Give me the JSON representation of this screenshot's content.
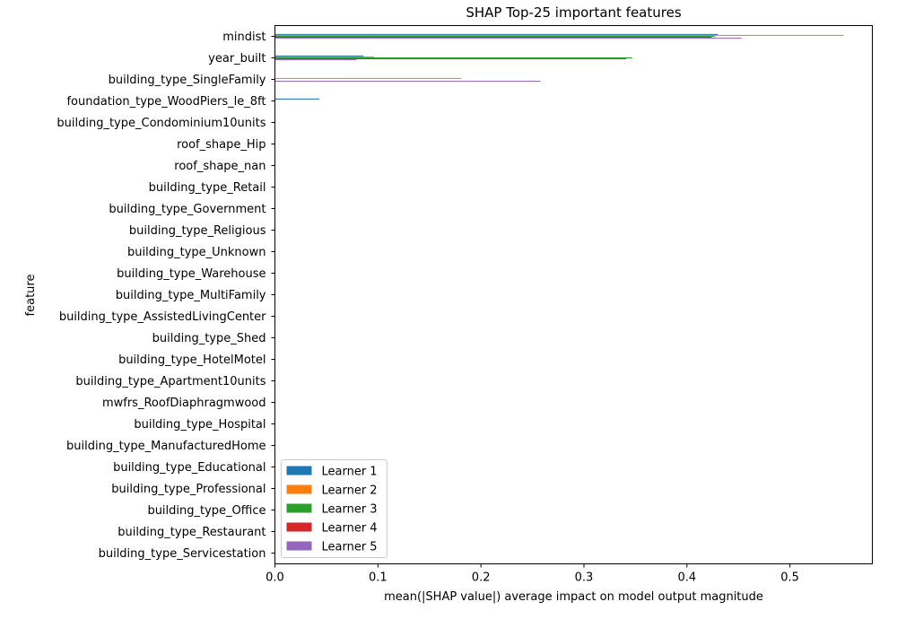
{
  "chart_data": {
    "type": "bar",
    "orientation": "horizontal",
    "title": "SHAP Top-25 important features",
    "xlabel": "mean(|SHAP value|) average impact on model output magnitude",
    "ylabel": "feature",
    "xlim": [
      0,
      0.58
    ],
    "xticks": [
      0.0,
      0.1,
      0.2,
      0.3,
      0.4,
      0.5
    ],
    "xtick_labels": [
      "0.0",
      "0.1",
      "0.2",
      "0.3",
      "0.4",
      "0.5"
    ],
    "grid": false,
    "legend_position": "lower-left",
    "categories": [
      "mindist",
      "year_built",
      "building_type_SingleFamily",
      "foundation_type_WoodPiers_le_8ft",
      "building_type_Condominium10units",
      "roof_shape_Hip",
      "roof_shape_nan",
      "building_type_Retail",
      "building_type_Government",
      "building_type_Religious",
      "building_type_Unknown",
      "building_type_Warehouse",
      "building_type_MultiFamily",
      "building_type_AssistedLivingCenter",
      "building_type_Shed",
      "building_type_HotelMotel",
      "building_type_Apartment10units",
      "mwfrs_RoofDiaphragmwood",
      "building_type_Hospital",
      "building_type_ManufacturedHome",
      "building_type_Educational",
      "building_type_Professional",
      "building_type_Office",
      "building_type_Restaurant",
      "building_type_Servicestation"
    ],
    "series": [
      {
        "name": "Learner 1",
        "color": "#1f77b4",
        "values": [
          0.43,
          0.086,
          0.0,
          0.043,
          0,
          0,
          0,
          0,
          0,
          0,
          0,
          0,
          0,
          0,
          0,
          0,
          0,
          0,
          0,
          0,
          0,
          0,
          0,
          0,
          0
        ]
      },
      {
        "name": "Learner 2",
        "color": "#ff7f0e",
        "values": [
          0.552,
          0.096,
          0.181,
          0.0,
          0,
          0,
          0,
          0,
          0,
          0,
          0,
          0,
          0,
          0,
          0,
          0,
          0,
          0,
          0,
          0,
          0,
          0,
          0,
          0,
          0
        ]
      },
      {
        "name": "Learner 3",
        "color": "#2ca02c",
        "values": [
          0.427,
          0.347,
          0.0,
          0.0,
          0,
          0,
          0,
          0,
          0,
          0,
          0,
          0,
          0,
          0,
          0,
          0,
          0,
          0,
          0,
          0,
          0,
          0,
          0,
          0,
          0
        ]
      },
      {
        "name": "Learner 4",
        "color": "#d62728",
        "values": [
          0.424,
          0.341,
          0.0,
          0.0,
          0,
          0,
          0,
          0,
          0,
          0,
          0,
          0,
          0,
          0,
          0,
          0,
          0,
          0,
          0,
          0,
          0,
          0,
          0,
          0,
          0
        ]
      },
      {
        "name": "Learner 5",
        "color": "#9467bd",
        "values": [
          0.453,
          0.079,
          0.258,
          0.0,
          0,
          0,
          0,
          0,
          0,
          0,
          0,
          0,
          0,
          0,
          0,
          0,
          0,
          0,
          0,
          0,
          0,
          0,
          0,
          0,
          0
        ]
      }
    ]
  }
}
